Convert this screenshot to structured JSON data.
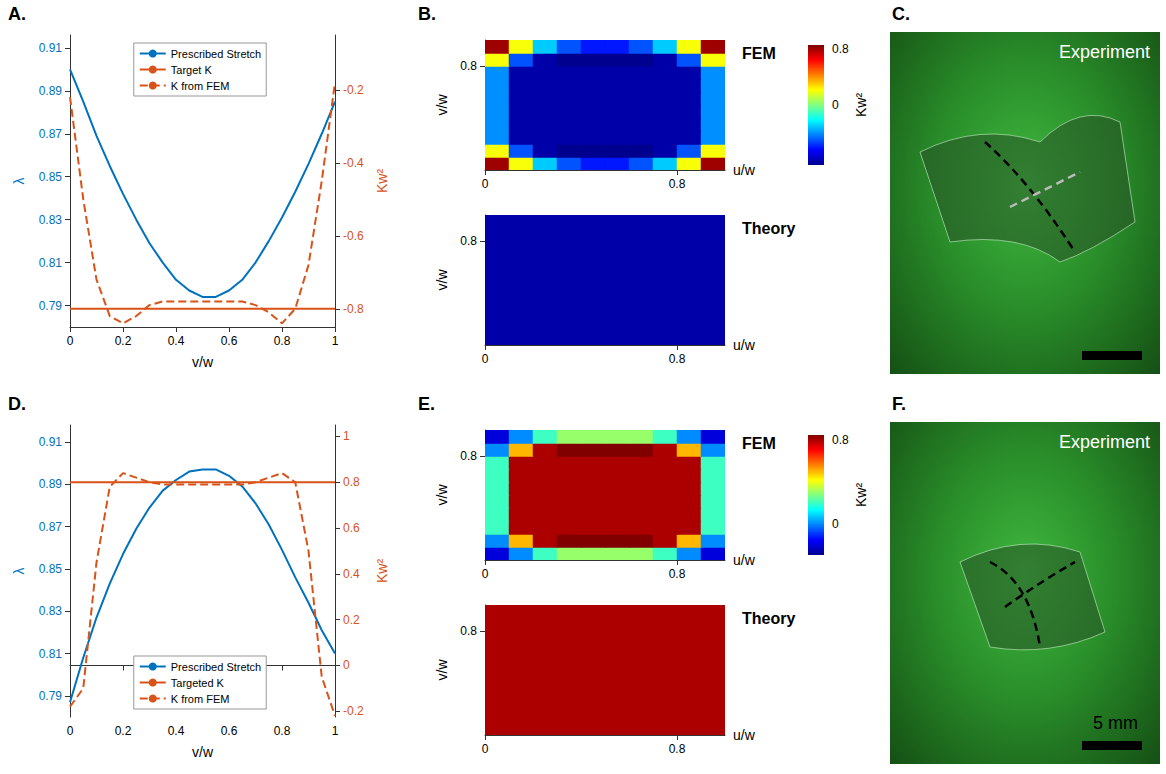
{
  "chart_data": [
    {
      "panel_label": "A.",
      "type": "line",
      "x": [
        0,
        0.05,
        0.1,
        0.15,
        0.2,
        0.25,
        0.3,
        0.35,
        0.4,
        0.45,
        0.5,
        0.55,
        0.6,
        0.65,
        0.7,
        0.75,
        0.8,
        0.85,
        0.9,
        0.95,
        1
      ],
      "x_label": "v/w",
      "xlim": [
        0,
        1
      ],
      "xticks": [
        0,
        0.2,
        0.4,
        0.6,
        0.8,
        1
      ],
      "y_label": "λ",
      "ylim": [
        0.78,
        0.916
      ],
      "yticks": [
        0.79,
        0.81,
        0.83,
        0.85,
        0.87,
        0.89,
        0.91
      ],
      "y2_label": "Kw²",
      "y2lim": [
        -0.85,
        -0.05
      ],
      "y2ticks": [
        -0.8,
        -0.6,
        -0.4,
        -0.2
      ],
      "legend": "top",
      "series": [
        {
          "name": "Prescribed Stretch",
          "color": "#0072BD",
          "line_style": "solid",
          "values": [
            0.9,
            0.885,
            0.869,
            0.855,
            0.842,
            0.83,
            0.819,
            0.81,
            0.802,
            0.797,
            0.794,
            0.794,
            0.797,
            0.802,
            0.81,
            0.82,
            0.831,
            0.843,
            0.856,
            0.87,
            0.885
          ]
        },
        {
          "name": "Target K",
          "color": "#D95319",
          "line_style": "solid",
          "axis": "y2",
          "values": [
            -0.8,
            -0.8,
            -0.8,
            -0.8,
            -0.8,
            -0.8,
            -0.8,
            -0.8,
            -0.8,
            -0.8,
            -0.8,
            -0.8,
            -0.8,
            -0.8,
            -0.8,
            -0.8,
            -0.8,
            -0.8,
            -0.8,
            -0.8,
            -0.8
          ]
        },
        {
          "name": "K from FEM",
          "color": "#D95319",
          "line_style": "dashed",
          "axis": "y2",
          "values": [
            -0.22,
            -0.5,
            -0.72,
            -0.82,
            -0.84,
            -0.82,
            -0.79,
            -0.78,
            -0.78,
            -0.78,
            -0.78,
            -0.78,
            -0.78,
            -0.78,
            -0.79,
            -0.81,
            -0.84,
            -0.8,
            -0.68,
            -0.45,
            -0.18
          ]
        }
      ]
    },
    {
      "panel_label": "B.",
      "type": "heatmap",
      "colorbar_label": "Kw²",
      "colorbar_range": [
        -0.85,
        0.85
      ],
      "colorbar_ticks": [
        0,
        0.8
      ],
      "plots": [
        {
          "title": "FEM",
          "x_label": "u/w",
          "y_label": "v/w",
          "xlim": [
            0,
            1
          ],
          "ylim": [
            0,
            1
          ],
          "xticks": [
            0,
            0.8
          ],
          "yticks": [
            0.8
          ],
          "u_edges": [
            0,
            0.1,
            0.2,
            0.3,
            0.4,
            0.5,
            0.6,
            0.7,
            0.8,
            0.9,
            1
          ],
          "v_edges": [
            0,
            0.1,
            0.2,
            0.3,
            0.4,
            0.5,
            0.6,
            0.7,
            0.8,
            0.9,
            1
          ],
          "Kw2": [
            [
              0.8,
              0.2,
              -0.3,
              -0.5,
              -0.6,
              -0.6,
              -0.5,
              -0.3,
              0.2,
              0.8
            ],
            [
              0.2,
              -0.5,
              -0.8,
              -0.85,
              -0.85,
              -0.85,
              -0.85,
              -0.8,
              -0.5,
              0.2
            ],
            [
              -0.4,
              -0.8,
              -0.8,
              -0.8,
              -0.8,
              -0.8,
              -0.8,
              -0.8,
              -0.8,
              -0.4
            ],
            [
              -0.4,
              -0.8,
              -0.8,
              -0.8,
              -0.8,
              -0.8,
              -0.8,
              -0.8,
              -0.8,
              -0.4
            ],
            [
              -0.4,
              -0.8,
              -0.8,
              -0.8,
              -0.8,
              -0.8,
              -0.8,
              -0.8,
              -0.8,
              -0.4
            ],
            [
              -0.4,
              -0.8,
              -0.8,
              -0.8,
              -0.8,
              -0.8,
              -0.8,
              -0.8,
              -0.8,
              -0.4
            ],
            [
              -0.4,
              -0.8,
              -0.8,
              -0.8,
              -0.8,
              -0.8,
              -0.8,
              -0.8,
              -0.8,
              -0.4
            ],
            [
              -0.4,
              -0.8,
              -0.8,
              -0.8,
              -0.8,
              -0.8,
              -0.8,
              -0.8,
              -0.8,
              -0.4
            ],
            [
              0.2,
              -0.5,
              -0.8,
              -0.85,
              -0.85,
              -0.85,
              -0.85,
              -0.8,
              -0.5,
              0.2
            ],
            [
              0.8,
              0.2,
              -0.3,
              -0.5,
              -0.6,
              -0.6,
              -0.5,
              -0.3,
              0.2,
              0.8
            ]
          ]
        },
        {
          "title": "Theory",
          "x_label": "u/w",
          "y_label": "v/w",
          "xlim": [
            0,
            1
          ],
          "ylim": [
            0,
            1
          ],
          "xticks": [
            0,
            0.8
          ],
          "yticks": [
            0.8
          ],
          "u_edges": [
            0,
            0.1,
            0.2,
            0.3,
            0.4,
            0.5,
            0.6,
            0.7,
            0.8,
            0.9,
            1
          ],
          "v_edges": [
            0,
            0.1,
            0.2,
            0.3,
            0.4,
            0.5,
            0.6,
            0.7,
            0.8,
            0.9,
            1
          ],
          "Kw2": [
            [
              -0.8,
              -0.8,
              -0.8,
              -0.8,
              -0.8,
              -0.8,
              -0.8,
              -0.8,
              -0.8,
              -0.8
            ],
            [
              -0.8,
              -0.8,
              -0.8,
              -0.8,
              -0.8,
              -0.8,
              -0.8,
              -0.8,
              -0.8,
              -0.8
            ],
            [
              -0.8,
              -0.8,
              -0.8,
              -0.8,
              -0.8,
              -0.8,
              -0.8,
              -0.8,
              -0.8,
              -0.8
            ],
            [
              -0.8,
              -0.8,
              -0.8,
              -0.8,
              -0.8,
              -0.8,
              -0.8,
              -0.8,
              -0.8,
              -0.8
            ],
            [
              -0.8,
              -0.8,
              -0.8,
              -0.8,
              -0.8,
              -0.8,
              -0.8,
              -0.8,
              -0.8,
              -0.8
            ],
            [
              -0.8,
              -0.8,
              -0.8,
              -0.8,
              -0.8,
              -0.8,
              -0.8,
              -0.8,
              -0.8,
              -0.8
            ],
            [
              -0.8,
              -0.8,
              -0.8,
              -0.8,
              -0.8,
              -0.8,
              -0.8,
              -0.8,
              -0.8,
              -0.8
            ],
            [
              -0.8,
              -0.8,
              -0.8,
              -0.8,
              -0.8,
              -0.8,
              -0.8,
              -0.8,
              -0.8,
              -0.8
            ],
            [
              -0.8,
              -0.8,
              -0.8,
              -0.8,
              -0.8,
              -0.8,
              -0.8,
              -0.8,
              -0.8,
              -0.8
            ],
            [
              -0.8,
              -0.8,
              -0.8,
              -0.8,
              -0.8,
              -0.8,
              -0.8,
              -0.8,
              -0.8,
              -0.8
            ]
          ]
        }
      ]
    },
    {
      "panel_label": "D.",
      "type": "line",
      "x": [
        0,
        0.05,
        0.1,
        0.15,
        0.2,
        0.25,
        0.3,
        0.35,
        0.4,
        0.45,
        0.5,
        0.55,
        0.6,
        0.65,
        0.7,
        0.75,
        0.8,
        0.85,
        0.9,
        0.95,
        1
      ],
      "x_label": "v/w",
      "xlim": [
        0,
        1
      ],
      "xticks": [
        0,
        0.2,
        0.4,
        0.6,
        0.8,
        1
      ],
      "y_label": "λ",
      "ylim": [
        0.78,
        0.918
      ],
      "yticks": [
        0.79,
        0.81,
        0.83,
        0.85,
        0.87,
        0.89,
        0.91
      ],
      "y2_label": "Kw²",
      "y2lim": [
        -0.225,
        1.05
      ],
      "y2ticks": [
        -0.2,
        0,
        0.2,
        0.4,
        0.6,
        0.8,
        1
      ],
      "legend": "bottom",
      "series": [
        {
          "name": "Prescribed Stretch",
          "color": "#0072BD",
          "line_style": "solid",
          "values": [
            0.787,
            0.808,
            0.827,
            0.843,
            0.857,
            0.869,
            0.879,
            0.887,
            0.892,
            0.896,
            0.897,
            0.897,
            0.894,
            0.889,
            0.881,
            0.871,
            0.859,
            0.846,
            0.834,
            0.821,
            0.81
          ]
        },
        {
          "name": "Targeted K",
          "color": "#D95319",
          "line_style": "solid",
          "axis": "y2",
          "values": [
            0.8,
            0.8,
            0.8,
            0.8,
            0.8,
            0.8,
            0.8,
            0.8,
            0.8,
            0.8,
            0.8,
            0.8,
            0.8,
            0.8,
            0.8,
            0.8,
            0.8,
            0.8,
            0.8,
            0.8,
            0.8
          ]
        },
        {
          "name": "K from FEM",
          "color": "#D95319",
          "line_style": "dashed",
          "axis": "y2",
          "values": [
            -0.18,
            -0.1,
            0.45,
            0.78,
            0.84,
            0.82,
            0.8,
            0.79,
            0.79,
            0.79,
            0.79,
            0.79,
            0.79,
            0.79,
            0.8,
            0.82,
            0.84,
            0.8,
            0.5,
            -0.05,
            -0.22
          ]
        }
      ]
    },
    {
      "panel_label": "E.",
      "type": "heatmap",
      "colorbar_label": "Kw²",
      "colorbar_range": [
        -0.3,
        0.85
      ],
      "colorbar_ticks": [
        0,
        0.8
      ],
      "plots": [
        {
          "title": "FEM",
          "x_label": "u/w",
          "y_label": "v/w",
          "xlim": [
            0,
            1
          ],
          "ylim": [
            0,
            1
          ],
          "xticks": [
            0,
            0.8
          ],
          "yticks": [
            0.8
          ],
          "u_edges": [
            0,
            0.1,
            0.2,
            0.3,
            0.4,
            0.5,
            0.6,
            0.7,
            0.8,
            0.9,
            1
          ],
          "v_edges": [
            0,
            0.1,
            0.2,
            0.3,
            0.4,
            0.5,
            0.6,
            0.7,
            0.8,
            0.9,
            1
          ],
          "Kw2": [
            [
              -0.2,
              0,
              0.2,
              0.3,
              0.3,
              0.3,
              0.3,
              0.2,
              0,
              -0.2
            ],
            [
              0,
              0.5,
              0.8,
              0.85,
              0.85,
              0.85,
              0.85,
              0.8,
              0.5,
              0
            ],
            [
              0.2,
              0.8,
              0.8,
              0.8,
              0.8,
              0.8,
              0.8,
              0.8,
              0.8,
              0.2
            ],
            [
              0.2,
              0.8,
              0.8,
              0.8,
              0.8,
              0.8,
              0.8,
              0.8,
              0.8,
              0.2
            ],
            [
              0.2,
              0.8,
              0.8,
              0.8,
              0.8,
              0.8,
              0.8,
              0.8,
              0.8,
              0.2
            ],
            [
              0.2,
              0.8,
              0.8,
              0.8,
              0.8,
              0.8,
              0.8,
              0.8,
              0.8,
              0.2
            ],
            [
              0.2,
              0.8,
              0.8,
              0.8,
              0.8,
              0.8,
              0.8,
              0.8,
              0.8,
              0.2
            ],
            [
              0.2,
              0.8,
              0.8,
              0.8,
              0.8,
              0.8,
              0.8,
              0.8,
              0.8,
              0.2
            ],
            [
              0,
              0.5,
              0.8,
              0.85,
              0.85,
              0.85,
              0.85,
              0.8,
              0.5,
              0
            ],
            [
              -0.2,
              0,
              0.2,
              0.3,
              0.3,
              0.3,
              0.3,
              0.2,
              0,
              -0.2
            ]
          ]
        },
        {
          "title": "Theory",
          "x_label": "u/w",
          "y_label": "v/w",
          "xlim": [
            0,
            1
          ],
          "ylim": [
            0,
            1
          ],
          "xticks": [
            0,
            0.8
          ],
          "yticks": [
            0.8
          ],
          "u_edges": [
            0,
            0.1,
            0.2,
            0.3,
            0.4,
            0.5,
            0.6,
            0.7,
            0.8,
            0.9,
            1
          ],
          "v_edges": [
            0,
            0.1,
            0.2,
            0.3,
            0.4,
            0.5,
            0.6,
            0.7,
            0.8,
            0.9,
            1
          ],
          "Kw2": [
            [
              0.8,
              0.8,
              0.8,
              0.8,
              0.8,
              0.8,
              0.8,
              0.8,
              0.8,
              0.8
            ],
            [
              0.8,
              0.8,
              0.8,
              0.8,
              0.8,
              0.8,
              0.8,
              0.8,
              0.8,
              0.8
            ],
            [
              0.8,
              0.8,
              0.8,
              0.8,
              0.8,
              0.8,
              0.8,
              0.8,
              0.8,
              0.8
            ],
            [
              0.8,
              0.8,
              0.8,
              0.8,
              0.8,
              0.8,
              0.8,
              0.8,
              0.8,
              0.8
            ],
            [
              0.8,
              0.8,
              0.8,
              0.8,
              0.8,
              0.8,
              0.8,
              0.8,
              0.8,
              0.8
            ],
            [
              0.8,
              0.8,
              0.8,
              0.8,
              0.8,
              0.8,
              0.8,
              0.8,
              0.8,
              0.8
            ],
            [
              0.8,
              0.8,
              0.8,
              0.8,
              0.8,
              0.8,
              0.8,
              0.8,
              0.8,
              0.8
            ],
            [
              0.8,
              0.8,
              0.8,
              0.8,
              0.8,
              0.8,
              0.8,
              0.8,
              0.8,
              0.8
            ],
            [
              0.8,
              0.8,
              0.8,
              0.8,
              0.8,
              0.8,
              0.8,
              0.8,
              0.8,
              0.8
            ],
            [
              0.8,
              0.8,
              0.8,
              0.8,
              0.8,
              0.8,
              0.8,
              0.8,
              0.8,
              0.8
            ]
          ]
        }
      ]
    }
  ],
  "photos": [
    {
      "panel_label": "C.",
      "text": "Experiment"
    },
    {
      "panel_label": "F.",
      "text": "Experiment",
      "scale_bar": "5 mm"
    }
  ]
}
